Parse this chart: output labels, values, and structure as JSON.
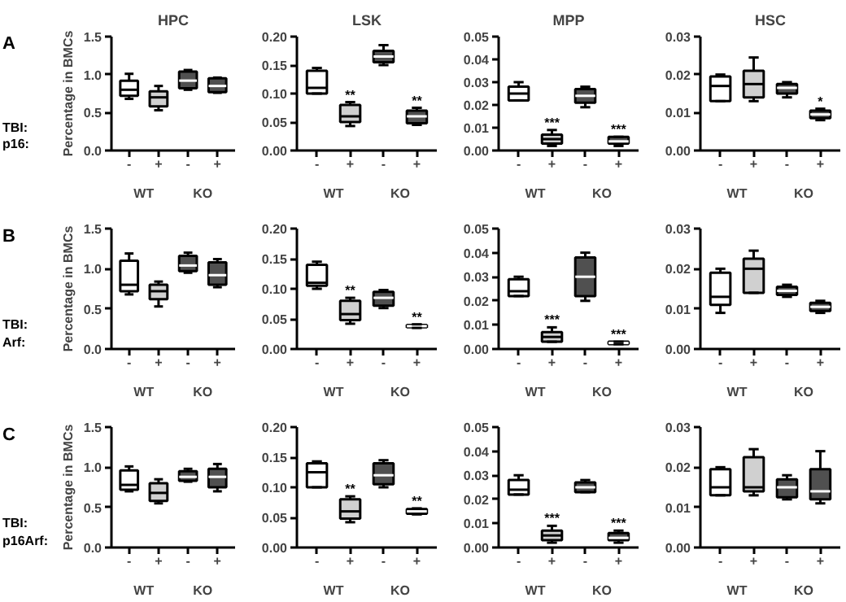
{
  "chart_data": [
    {
      "type": "box",
      "title": "HPC",
      "ylabel": "Percentage in BMCs",
      "categories": [
        "-",
        "+",
        "-",
        "+"
      ],
      "ylim": [
        0,
        1.5
      ],
      "yticks": [
        {
          "value": 0,
          "label": "0.0"
        },
        {
          "value": 0.5,
          "label": "0.5"
        },
        {
          "value": 1,
          "label": "1.0"
        },
        {
          "value": 1.5,
          "label": "1.5"
        }
      ],
      "colors": [
        "#ffffff",
        "#d0d0d0",
        "#505050",
        "#505050"
      ],
      "boxes": [
        {
          "low": 0.68,
          "q1": 0.72,
          "median": 0.8,
          "q3": 0.92,
          "high": 1.01
        },
        {
          "low": 0.53,
          "q1": 0.58,
          "median": 0.7,
          "q3": 0.78,
          "high": 0.85
        },
        {
          "low": 0.8,
          "q1": 0.82,
          "median": 0.92,
          "q3": 1.04,
          "high": 1.06
        },
        {
          "low": 0.76,
          "q1": 0.77,
          "median": 0.85,
          "q3": 0.95,
          "high": 0.96
        }
      ],
      "annotations": [
        "A",
        "TBI:",
        "p16:",
        "WT",
        "KO"
      ]
    },
    {
      "type": "box",
      "title": "LSK",
      "categories": [
        "-",
        "+",
        "-",
        "+"
      ],
      "ylim": [
        0,
        0.2
      ],
      "yticks": [
        {
          "value": 0,
          "label": "0.00"
        },
        {
          "value": 0.05,
          "label": "0.05"
        },
        {
          "value": 0.1,
          "label": "0.10"
        },
        {
          "value": 0.15,
          "label": "0.15"
        },
        {
          "value": 0.2,
          "label": "0.20"
        }
      ],
      "colors": [
        "#ffffff",
        "#d0d0d0",
        "#505050",
        "#505050"
      ],
      "boxes": [
        {
          "low": 0.1,
          "q1": 0.1,
          "median": 0.11,
          "q3": 0.14,
          "high": 0.145
        },
        {
          "low": 0.043,
          "q1": 0.05,
          "median": 0.06,
          "q3": 0.08,
          "high": 0.085
        },
        {
          "low": 0.15,
          "q1": 0.155,
          "median": 0.165,
          "q3": 0.175,
          "high": 0.185
        },
        {
          "low": 0.045,
          "q1": 0.048,
          "median": 0.06,
          "q3": 0.07,
          "high": 0.075
        }
      ],
      "value_labels": [
        null,
        "**",
        null,
        "**"
      ],
      "annotations": [
        "WT",
        "KO"
      ]
    },
    {
      "type": "box",
      "title": "MPP",
      "categories": [
        "-",
        "+",
        "-",
        "+"
      ],
      "ylim": [
        0,
        0.05
      ],
      "yticks": [
        {
          "value": 0,
          "label": "0.00"
        },
        {
          "value": 0.01,
          "label": "0.01"
        },
        {
          "value": 0.02,
          "label": "0.02"
        },
        {
          "value": 0.03,
          "label": "0.03"
        },
        {
          "value": 0.04,
          "label": "0.04"
        },
        {
          "value": 0.05,
          "label": "0.05"
        }
      ],
      "colors": [
        "#ffffff",
        "#d0d0d0",
        "#505050",
        "#505050"
      ],
      "boxes": [
        {
          "low": 0.022,
          "q1": 0.022,
          "median": 0.025,
          "q3": 0.028,
          "high": 0.03
        },
        {
          "low": 0.002,
          "q1": 0.003,
          "median": 0.005,
          "q3": 0.007,
          "high": 0.009
        },
        {
          "low": 0.019,
          "q1": 0.021,
          "median": 0.024,
          "q3": 0.027,
          "high": 0.028
        },
        {
          "low": 0.002,
          "q1": 0.003,
          "median": 0.004,
          "q3": 0.006,
          "high": 0.006
        }
      ],
      "value_labels": [
        null,
        "***",
        null,
        "***"
      ],
      "annotations": [
        "WT",
        "KO"
      ]
    },
    {
      "type": "box",
      "title": "HSC",
      "categories": [
        "-",
        "+",
        "-",
        "+"
      ],
      "ylim": [
        0,
        0.03
      ],
      "yticks": [
        {
          "value": 0,
          "label": "0.00"
        },
        {
          "value": 0.01,
          "label": "0.01"
        },
        {
          "value": 0.02,
          "label": "0.02"
        },
        {
          "value": 0.03,
          "label": "0.03"
        }
      ],
      "colors": [
        "#ffffff",
        "#d0d0d0",
        "#505050",
        "#505050"
      ],
      "boxes": [
        {
          "low": 0.013,
          "q1": 0.013,
          "median": 0.017,
          "q3": 0.0195,
          "high": 0.02
        },
        {
          "low": 0.013,
          "q1": 0.014,
          "median": 0.0175,
          "q3": 0.021,
          "high": 0.0245
        },
        {
          "low": 0.014,
          "q1": 0.015,
          "median": 0.0165,
          "q3": 0.0175,
          "high": 0.018
        },
        {
          "low": 0.008,
          "q1": 0.0085,
          "median": 0.0095,
          "q3": 0.0105,
          "high": 0.011
        }
      ],
      "value_labels": [
        null,
        null,
        null,
        "*"
      ],
      "annotations": [
        "WT",
        "KO"
      ]
    },
    {
      "type": "box",
      "ylabel": "Percentage in BMCs",
      "categories": [
        "-",
        "+",
        "-",
        "+"
      ],
      "ylim": [
        0,
        1.5
      ],
      "yticks": [
        {
          "value": 0,
          "label": "0.0"
        },
        {
          "value": 0.5,
          "label": "0.5"
        },
        {
          "value": 1,
          "label": "1.0"
        },
        {
          "value": 1.5,
          "label": "1.5"
        }
      ],
      "colors": [
        "#ffffff",
        "#d0d0d0",
        "#505050",
        "#505050"
      ],
      "boxes": [
        {
          "low": 0.68,
          "q1": 0.72,
          "median": 0.8,
          "q3": 1.1,
          "high": 1.19
        },
        {
          "low": 0.53,
          "q1": 0.62,
          "median": 0.72,
          "q3": 0.8,
          "high": 0.84
        },
        {
          "low": 0.95,
          "q1": 0.97,
          "median": 1.04,
          "q3": 1.16,
          "high": 1.2
        },
        {
          "low": 0.77,
          "q1": 0.8,
          "median": 0.92,
          "q3": 1.08,
          "high": 1.12
        }
      ],
      "annotations": [
        "B",
        "TBI:",
        "Arf:",
        "WT",
        "KO"
      ]
    },
    {
      "type": "box",
      "categories": [
        "-",
        "+",
        "-",
        "+"
      ],
      "ylim": [
        0,
        0.2
      ],
      "yticks": [
        {
          "value": 0,
          "label": "0.00"
        },
        {
          "value": 0.05,
          "label": "0.05"
        },
        {
          "value": 0.1,
          "label": "0.10"
        },
        {
          "value": 0.15,
          "label": "0.15"
        },
        {
          "value": 0.2,
          "label": "0.20"
        }
      ],
      "colors": [
        "#ffffff",
        "#d0d0d0",
        "#505050",
        "#505050"
      ],
      "boxes": [
        {
          "low": 0.1,
          "q1": 0.105,
          "median": 0.11,
          "q3": 0.14,
          "high": 0.145
        },
        {
          "low": 0.042,
          "q1": 0.048,
          "median": 0.058,
          "q3": 0.08,
          "high": 0.085
        },
        {
          "low": 0.068,
          "q1": 0.072,
          "median": 0.085,
          "q3": 0.095,
          "high": 0.098
        },
        {
          "low": 0.035,
          "q1": 0.036,
          "median": 0.038,
          "q3": 0.04,
          "high": 0.041
        }
      ],
      "value_labels": [
        null,
        "**",
        null,
        "**"
      ],
      "annotations": [
        "WT",
        "KO"
      ]
    },
    {
      "type": "box",
      "categories": [
        "-",
        "+",
        "-",
        "+"
      ],
      "ylim": [
        0,
        0.05
      ],
      "yticks": [
        {
          "value": 0,
          "label": "0.00"
        },
        {
          "value": 0.01,
          "label": "0.01"
        },
        {
          "value": 0.02,
          "label": "0.02"
        },
        {
          "value": 0.03,
          "label": "0.03"
        },
        {
          "value": 0.04,
          "label": "0.04"
        },
        {
          "value": 0.05,
          "label": "0.05"
        }
      ],
      "colors": [
        "#ffffff",
        "#d0d0d0",
        "#505050",
        "#505050"
      ],
      "boxes": [
        {
          "low": 0.022,
          "q1": 0.022,
          "median": 0.024,
          "q3": 0.029,
          "high": 0.03
        },
        {
          "low": 0.003,
          "q1": 0.003,
          "median": 0.005,
          "q3": 0.007,
          "high": 0.009
        },
        {
          "low": 0.02,
          "q1": 0.022,
          "median": 0.03,
          "q3": 0.038,
          "high": 0.04
        },
        {
          "low": 0.002,
          "q1": 0.002,
          "median": 0.0025,
          "q3": 0.003,
          "high": 0.003
        }
      ],
      "value_labels": [
        null,
        "***",
        null,
        "***"
      ],
      "annotations": [
        "WT",
        "KO"
      ]
    },
    {
      "type": "box",
      "categories": [
        "-",
        "+",
        "-",
        "+"
      ],
      "ylim": [
        0,
        0.03
      ],
      "yticks": [
        {
          "value": 0,
          "label": "0.00"
        },
        {
          "value": 0.01,
          "label": "0.01"
        },
        {
          "value": 0.02,
          "label": "0.02"
        },
        {
          "value": 0.03,
          "label": "0.03"
        }
      ],
      "colors": [
        "#ffffff",
        "#d0d0d0",
        "#505050",
        "#505050"
      ],
      "boxes": [
        {
          "low": 0.009,
          "q1": 0.011,
          "median": 0.013,
          "q3": 0.019,
          "high": 0.02
        },
        {
          "low": 0.014,
          "q1": 0.014,
          "median": 0.02,
          "q3": 0.0225,
          "high": 0.0245
        },
        {
          "low": 0.013,
          "q1": 0.0135,
          "median": 0.0145,
          "q3": 0.0155,
          "high": 0.016
        },
        {
          "low": 0.009,
          "q1": 0.0095,
          "median": 0.0105,
          "q3": 0.0115,
          "high": 0.012
        }
      ],
      "annotations": [
        "WT",
        "KO"
      ]
    },
    {
      "type": "box",
      "ylabel": "Percentage in BMCs",
      "categories": [
        "-",
        "+",
        "-",
        "+"
      ],
      "ylim": [
        0,
        1.5
      ],
      "yticks": [
        {
          "value": 0,
          "label": "0.0"
        },
        {
          "value": 0.5,
          "label": "0.5"
        },
        {
          "value": 1,
          "label": "1.0"
        },
        {
          "value": 1.5,
          "label": "1.5"
        }
      ],
      "colors": [
        "#ffffff",
        "#d0d0d0",
        "#505050",
        "#505050"
      ],
      "boxes": [
        {
          "low": 0.7,
          "q1": 0.72,
          "median": 0.78,
          "q3": 0.96,
          "high": 1.01
        },
        {
          "low": 0.55,
          "q1": 0.58,
          "median": 0.68,
          "q3": 0.8,
          "high": 0.85
        },
        {
          "low": 0.82,
          "q1": 0.83,
          "median": 0.88,
          "q3": 0.95,
          "high": 0.98
        },
        {
          "low": 0.7,
          "q1": 0.75,
          "median": 0.88,
          "q3": 0.98,
          "high": 1.04
        }
      ],
      "annotations": [
        "C",
        "TBI:",
        "p16Arf:",
        "WT",
        "KO"
      ]
    },
    {
      "type": "box",
      "categories": [
        "-",
        "+",
        "-",
        "+"
      ],
      "ylim": [
        0,
        0.2
      ],
      "yticks": [
        {
          "value": 0,
          "label": "0.00"
        },
        {
          "value": 0.05,
          "label": "0.05"
        },
        {
          "value": 0.1,
          "label": "0.10"
        },
        {
          "value": 0.15,
          "label": "0.15"
        },
        {
          "value": 0.2,
          "label": "0.20"
        }
      ],
      "colors": [
        "#ffffff",
        "#d0d0d0",
        "#505050",
        "#505050"
      ],
      "boxes": [
        {
          "low": 0.1,
          "q1": 0.1,
          "median": 0.125,
          "q3": 0.14,
          "high": 0.143
        },
        {
          "low": 0.042,
          "q1": 0.048,
          "median": 0.06,
          "q3": 0.08,
          "high": 0.085
        },
        {
          "low": 0.1,
          "q1": 0.105,
          "median": 0.12,
          "q3": 0.14,
          "high": 0.145
        },
        {
          "low": 0.055,
          "q1": 0.056,
          "median": 0.06,
          "q3": 0.064,
          "high": 0.065
        }
      ],
      "value_labels": [
        null,
        "**",
        null,
        "**"
      ],
      "annotations": [
        "WT",
        "KO"
      ]
    },
    {
      "type": "box",
      "categories": [
        "-",
        "+",
        "-",
        "+"
      ],
      "ylim": [
        0,
        0.05
      ],
      "yticks": [
        {
          "value": 0,
          "label": "0.00"
        },
        {
          "value": 0.01,
          "label": "0.01"
        },
        {
          "value": 0.02,
          "label": "0.02"
        },
        {
          "value": 0.03,
          "label": "0.03"
        },
        {
          "value": 0.04,
          "label": "0.04"
        },
        {
          "value": 0.05,
          "label": "0.05"
        }
      ],
      "colors": [
        "#ffffff",
        "#d0d0d0",
        "#505050",
        "#505050"
      ],
      "boxes": [
        {
          "low": 0.022,
          "q1": 0.022,
          "median": 0.024,
          "q3": 0.028,
          "high": 0.03
        },
        {
          "low": 0.002,
          "q1": 0.003,
          "median": 0.005,
          "q3": 0.007,
          "high": 0.009
        },
        {
          "low": 0.023,
          "q1": 0.023,
          "median": 0.025,
          "q3": 0.027,
          "high": 0.028
        },
        {
          "low": 0.002,
          "q1": 0.003,
          "median": 0.004,
          "q3": 0.006,
          "high": 0.007
        }
      ],
      "value_labels": [
        null,
        "***",
        null,
        "***"
      ],
      "annotations": [
        "WT",
        "KO"
      ]
    },
    {
      "type": "box",
      "categories": [
        "-",
        "+",
        "-",
        "+"
      ],
      "ylim": [
        0,
        0.03
      ],
      "yticks": [
        {
          "value": 0,
          "label": "0.00"
        },
        {
          "value": 0.01,
          "label": "0.01"
        },
        {
          "value": 0.02,
          "label": "0.02"
        },
        {
          "value": 0.03,
          "label": "0.03"
        }
      ],
      "colors": [
        "#ffffff",
        "#d0d0d0",
        "#505050",
        "#505050"
      ],
      "boxes": [
        {
          "low": 0.013,
          "q1": 0.013,
          "median": 0.015,
          "q3": 0.0195,
          "high": 0.02
        },
        {
          "low": 0.013,
          "q1": 0.014,
          "median": 0.015,
          "q3": 0.0225,
          "high": 0.0245
        },
        {
          "low": 0.012,
          "q1": 0.0125,
          "median": 0.015,
          "q3": 0.017,
          "high": 0.018
        },
        {
          "low": 0.011,
          "q1": 0.012,
          "median": 0.014,
          "q3": 0.0195,
          "high": 0.024
        }
      ],
      "annotations": [
        "WT",
        "KO"
      ]
    }
  ]
}
